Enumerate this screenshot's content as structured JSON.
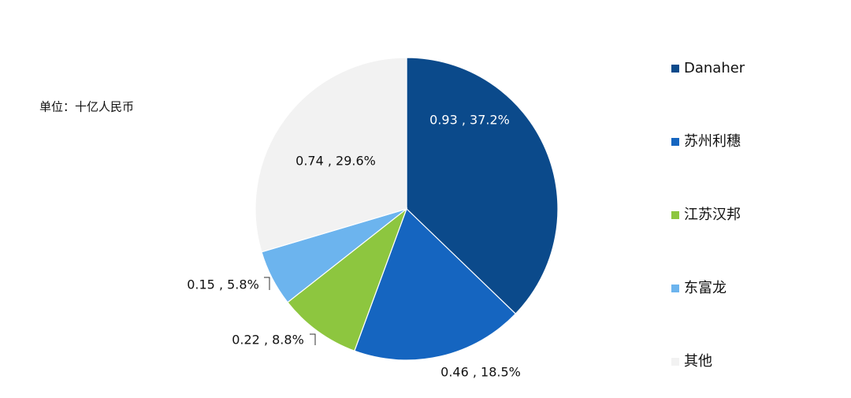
{
  "chart_data": {
    "type": "pie",
    "subtitle": "单位：十亿人民币",
    "categories": [
      "Danaher",
      "苏州利穗",
      "江苏汉邦",
      "东富龙",
      "其他"
    ],
    "values": [
      0.93,
      0.46,
      0.22,
      0.15,
      0.74
    ],
    "percents": [
      37.2,
      18.5,
      8.8,
      5.8,
      29.6
    ],
    "value_labels": [
      "0.93 , 37.2%",
      "0.46 , 18.5%",
      "0.22 , 8.8%",
      "0.15 , 5.8%",
      "0.74 , 29.6%"
    ],
    "colors": [
      "#0b4a8b",
      "#1565c0",
      "#8dc63f",
      "#6cb4ee",
      "#f2f2f2"
    ],
    "legend": "right"
  }
}
